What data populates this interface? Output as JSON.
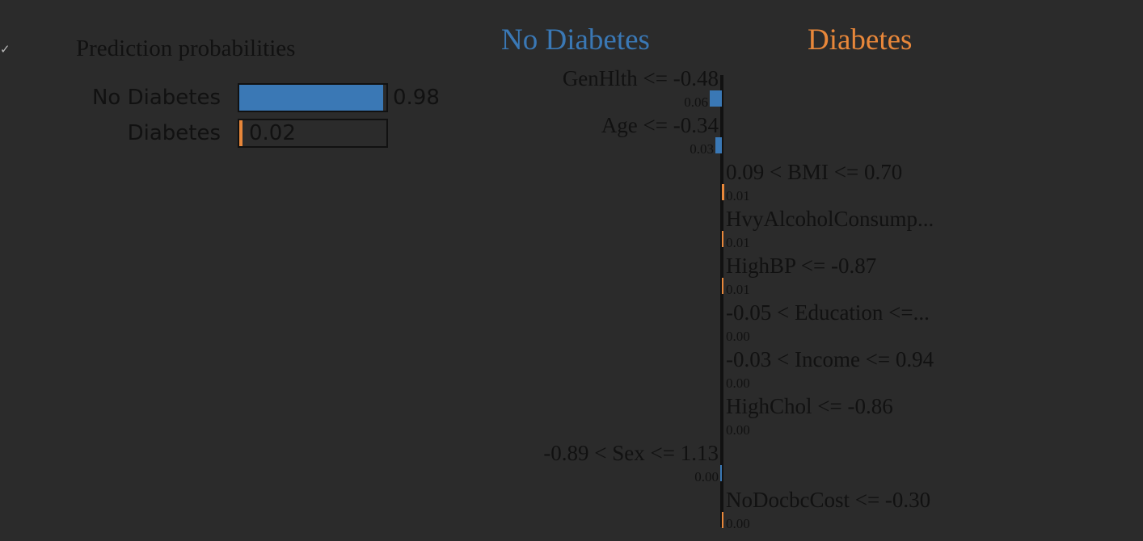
{
  "prediction_probabilities": {
    "title": "Prediction probabilities",
    "classes": [
      {
        "label": "No Diabetes",
        "value": 0.98,
        "value_text": "0.98",
        "color": "#3a78b5"
      },
      {
        "label": "Diabetes",
        "value": 0.02,
        "value_text": "0.02",
        "color": "#e8873a"
      }
    ]
  },
  "chart_data": {
    "type": "bar",
    "orientation": "horizontal",
    "negative_class": {
      "label": "No Diabetes",
      "color": "#3a78b5"
    },
    "positive_class": {
      "label": "Diabetes",
      "color": "#e8873a"
    },
    "features": [
      {
        "label": "GenHlth <= -0.48",
        "weight": -0.06,
        "value_text": "0.06"
      },
      {
        "label": "Age <= -0.34",
        "weight": -0.03,
        "value_text": "0.03"
      },
      {
        "label": "0.09 < BMI <= 0.70",
        "weight": 0.01,
        "value_text": "0.01"
      },
      {
        "label": "HvyAlcoholConsump...",
        "weight": 0.005,
        "value_text": "0.01"
      },
      {
        "label": "HighBP <= -0.87",
        "weight": 0.005,
        "value_text": "0.01"
      },
      {
        "label": "-0.05 < Education <=...",
        "weight": 0.0,
        "value_text": "0.00"
      },
      {
        "label": "-0.03 < Income <= 0.94",
        "weight": 0.0,
        "value_text": "0.00"
      },
      {
        "label": "HighChol <= -0.86",
        "weight": 0.0,
        "value_text": "0.00"
      },
      {
        "label": "-0.89 < Sex <= 1.13",
        "weight": -0.001,
        "value_text": "0.00"
      },
      {
        "label": "NoDocbcCost <= -0.30",
        "weight": 0.001,
        "value_text": "0.00"
      }
    ]
  }
}
